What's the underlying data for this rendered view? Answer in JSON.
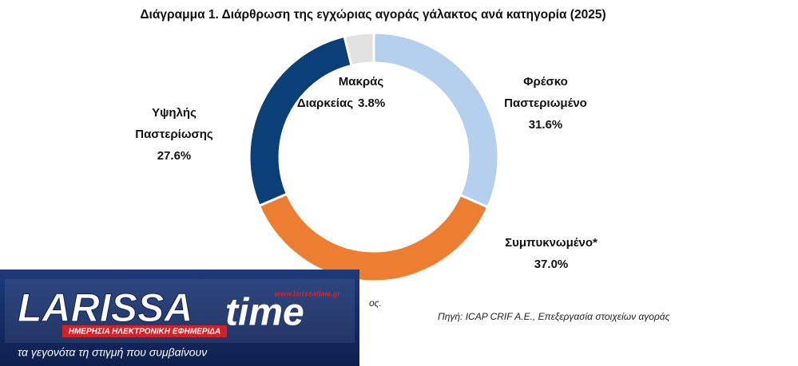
{
  "chart_data": {
    "type": "donut",
    "title": "Διάγραμμα 1. Διάρθρωση της εγχώριας αγοράς γάλακτος ανά κατηγορία (2025)",
    "categories": [
      [
        "Φρέσκο",
        "Παστεριωμένο"
      ],
      [
        "Συμπυκνωμένο*"
      ],
      [
        "Υψηλής",
        "Παστερίωσης"
      ],
      [
        "Μακράς",
        "Διαρκείας"
      ]
    ],
    "values": [
      31.6,
      37.0,
      27.6,
      3.8
    ],
    "value_labels": [
      "31.6%",
      "37.0%",
      "27.6%",
      "3.8%"
    ],
    "colors": [
      "#b4d0ec",
      "#ed7d31",
      "#0b3f78",
      "#e2e2e2"
    ],
    "note": "ος.",
    "source": "Πηγή: ICAP CRIF A.E., Επεξεργασία στοιχείων αγοράς"
  },
  "logo": {
    "brand_left": "LARISSA",
    "brand_right": "time",
    "url": "www.larissatime.gr",
    "subtitle": "ΗΜΕΡΗΣΙΑ ΗΛΕΚΤΡΟΝΙΚΗ ΕΦΗΜΕΡΙΔΑ",
    "slogan": "τα γεγονότα τη στιγμή που συμβαίνουν"
  }
}
